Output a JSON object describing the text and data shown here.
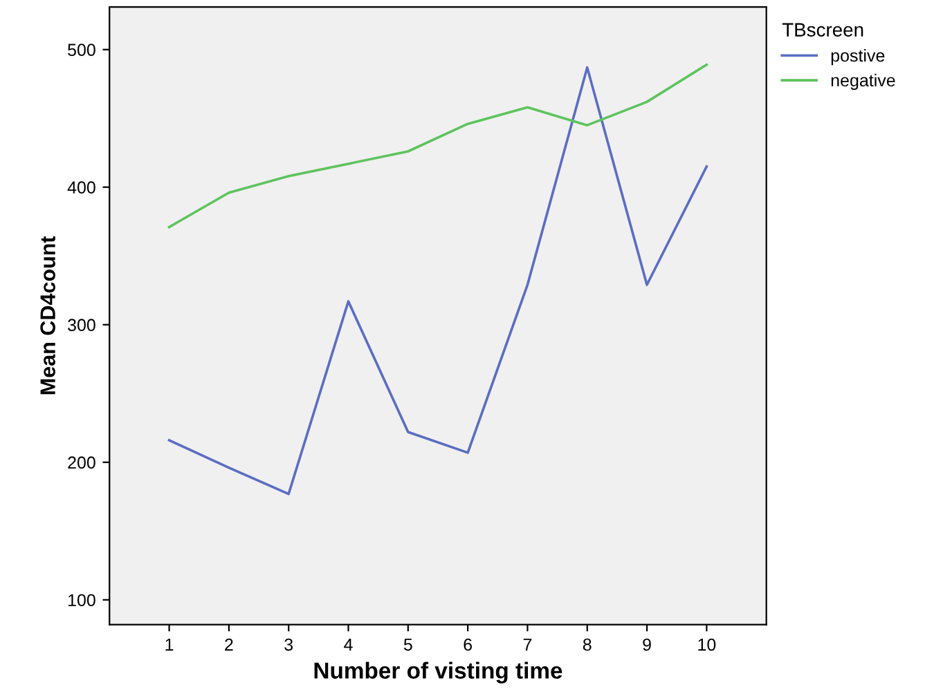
{
  "chart_data": {
    "type": "line",
    "xlabel": "Number of visting time",
    "ylabel": "Mean CD4count",
    "legend_title": "TBscreen",
    "legend": "top right",
    "x": [
      1,
      2,
      3,
      4,
      5,
      6,
      7,
      8,
      9,
      10
    ],
    "series": [
      {
        "name": "postive",
        "color": "#5b6dc2",
        "values": [
          216,
          196,
          177,
          317,
          222,
          207,
          329,
          487,
          329,
          415
        ]
      },
      {
        "name": "negative",
        "color": "#5ec35e",
        "values": [
          371,
          396,
          408,
          417,
          426,
          446,
          458,
          445,
          462,
          489
        ]
      }
    ],
    "xlim": [
      0,
      11
    ],
    "xticks": [
      1,
      2,
      3,
      4,
      5,
      6,
      7,
      8,
      9,
      10
    ],
    "ylim": [
      82,
      531
    ],
    "yticks": [
      100,
      200,
      300,
      400,
      500
    ],
    "grid": false,
    "marker": "none",
    "line_style": "solid"
  }
}
